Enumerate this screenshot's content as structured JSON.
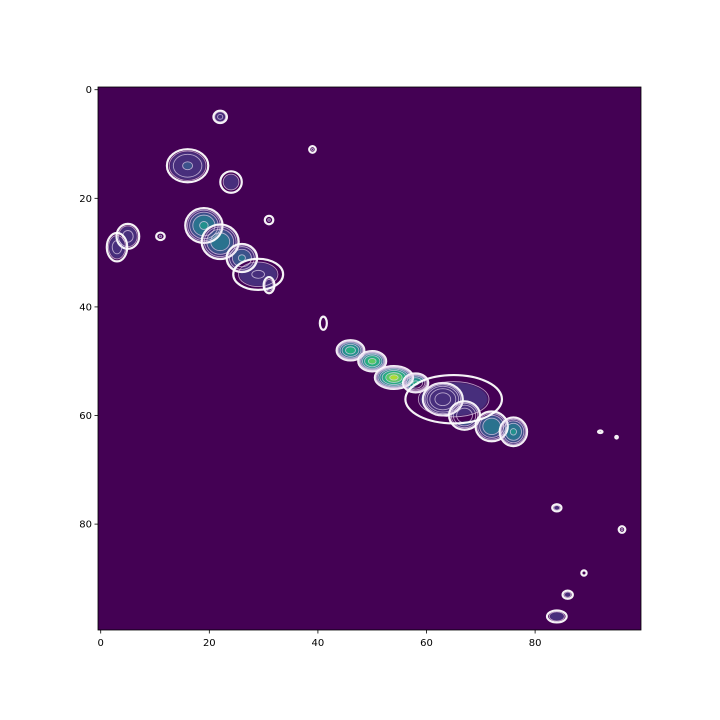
{
  "chart_data": {
    "type": "heatmap",
    "title": "",
    "xlabel": "",
    "ylabel": "",
    "xlim": [
      0,
      99
    ],
    "ylim": [
      99,
      0
    ],
    "y_axis_inverted": true,
    "grid": false,
    "legend": "none",
    "x_ticks": [
      "0",
      "20",
      "40",
      "60",
      "80"
    ],
    "y_ticks": [
      "0",
      "20",
      "40",
      "60",
      "80"
    ],
    "colormap": "viridis",
    "contour_overlay": {
      "style": "lavender-to-white contour lines",
      "color": "#e8d8f0"
    },
    "background_color": "#440154",
    "blobs": [
      {
        "x": 22,
        "y": 5,
        "rx": 1.2,
        "ry": 1.1,
        "peak": 0.15
      },
      {
        "x": 39,
        "y": 11,
        "rx": 0.7,
        "ry": 0.7,
        "peak": 0.08
      },
      {
        "x": 16,
        "y": 14,
        "rx": 3.5,
        "ry": 2.8,
        "peak": 0.22
      },
      {
        "x": 24,
        "y": 17,
        "rx": 2.0,
        "ry": 2.0,
        "peak": 0.12
      },
      {
        "x": 5,
        "y": 27,
        "rx": 2.0,
        "ry": 2.2,
        "peak": 0.16
      },
      {
        "x": 3,
        "y": 29,
        "rx": 1.8,
        "ry": 2.5,
        "peak": 0.16
      },
      {
        "x": 11,
        "y": 27,
        "rx": 0.9,
        "ry": 0.8,
        "peak": 0.08
      },
      {
        "x": 19,
        "y": 25,
        "rx": 3.0,
        "ry": 2.8,
        "peak": 0.45
      },
      {
        "x": 22,
        "y": 28,
        "rx": 3.0,
        "ry": 2.8,
        "peak": 0.4
      },
      {
        "x": 26,
        "y": 31,
        "rx": 2.5,
        "ry": 2.3,
        "peak": 0.32
      },
      {
        "x": 29,
        "y": 34,
        "rx": 4.5,
        "ry": 2.8,
        "peak": 0.14
      },
      {
        "x": 31,
        "y": 24,
        "rx": 0.9,
        "ry": 0.9,
        "peak": 0.08
      },
      {
        "x": 31,
        "y": 36,
        "rx": 1.0,
        "ry": 1.5,
        "peak": 0.12
      },
      {
        "x": 41,
        "y": 43,
        "rx": 0.8,
        "ry": 1.5,
        "peak": 0.07
      },
      {
        "x": 46,
        "y": 48,
        "rx": 2.2,
        "ry": 1.6,
        "peak": 0.65
      },
      {
        "x": 50,
        "y": 50,
        "rx": 2.2,
        "ry": 1.6,
        "peak": 0.8
      },
      {
        "x": 54,
        "y": 53,
        "rx": 3.0,
        "ry": 1.8,
        "peak": 0.9
      },
      {
        "x": 58,
        "y": 54,
        "rx": 2.0,
        "ry": 1.5,
        "peak": 0.6
      },
      {
        "x": 63,
        "y": 57,
        "rx": 3.2,
        "ry": 2.6,
        "peak": 0.5
      },
      {
        "x": 67,
        "y": 60,
        "rx": 2.5,
        "ry": 2.3,
        "peak": 0.4
      },
      {
        "x": 72,
        "y": 62,
        "rx": 2.6,
        "ry": 2.4,
        "peak": 0.42
      },
      {
        "x": 76,
        "y": 63,
        "rx": 2.2,
        "ry": 2.3,
        "peak": 0.45
      },
      {
        "x": 65,
        "y": 57,
        "rx": 9.0,
        "ry": 4.5,
        "peak": 0.12
      },
      {
        "x": 84,
        "y": 77,
        "rx": 0.9,
        "ry": 0.7,
        "peak": 0.1
      },
      {
        "x": 96,
        "y": 81,
        "rx": 0.7,
        "ry": 0.7,
        "peak": 0.08
      },
      {
        "x": 89,
        "y": 89,
        "rx": 0.6,
        "ry": 0.6,
        "peak": 0.07
      },
      {
        "x": 86,
        "y": 93,
        "rx": 1.0,
        "ry": 0.8,
        "peak": 0.1
      },
      {
        "x": 84,
        "y": 97,
        "rx": 1.8,
        "ry": 1.1,
        "peak": 0.13
      },
      {
        "x": 92,
        "y": 63,
        "rx": 0.7,
        "ry": 0.4,
        "peak": 0.05
      },
      {
        "x": 95,
        "y": 64,
        "rx": 0.4,
        "ry": 0.4,
        "peak": 0.05
      }
    ]
  }
}
